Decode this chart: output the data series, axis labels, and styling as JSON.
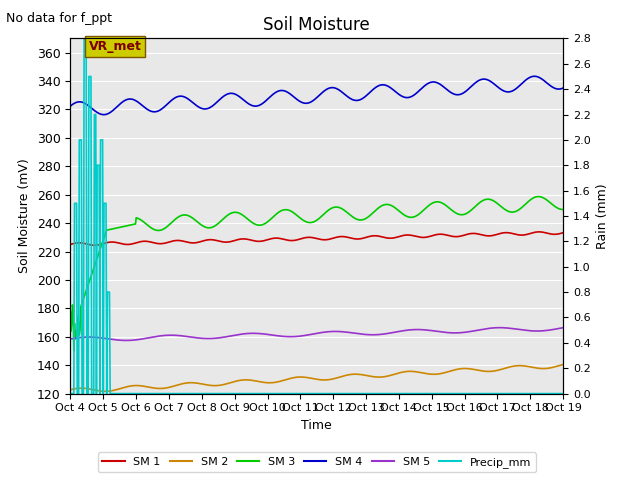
{
  "title": "Soil Moisture",
  "xlabel": "Time",
  "ylabel_left": "Soil Moisture (mV)",
  "ylabel_right": "Rain (mm)",
  "annotation_topleft": "No data for f_ppt",
  "annotation_box": "VR_met",
  "ylim_left": [
    120,
    370
  ],
  "ylim_right": [
    0.0,
    2.8
  ],
  "x_tick_labels": [
    "Oct 4",
    "Oct 5",
    "Oct 6",
    "Oct 7",
    "Oct 8",
    "Oct 9",
    "Oct 10",
    "Oct 11",
    "Oct 12",
    "Oct 13",
    "Oct 14",
    "Oct 15",
    "Oct 16",
    "Oct 17",
    "Oct 18",
    "Oct 19"
  ],
  "yticks_left": [
    120,
    140,
    160,
    180,
    200,
    220,
    240,
    260,
    280,
    300,
    320,
    340,
    360
  ],
  "yticks_right": [
    0.0,
    0.2,
    0.4,
    0.6,
    0.8,
    1.0,
    1.2,
    1.4,
    1.6,
    1.8,
    2.0,
    2.2,
    2.4,
    2.6,
    2.8
  ],
  "colors": {
    "SM1": "#cc0000",
    "SM2": "#cc8800",
    "SM3": "#00cc00",
    "SM4": "#0000cc",
    "SM5": "#9933cc",
    "Precip_mm": "#00cccc"
  },
  "bg_color": "#e8e8e8",
  "legend_labels": [
    "SM 1",
    "SM 2",
    "SM 3",
    "SM 4",
    "SM 5",
    "Precip_mm"
  ]
}
